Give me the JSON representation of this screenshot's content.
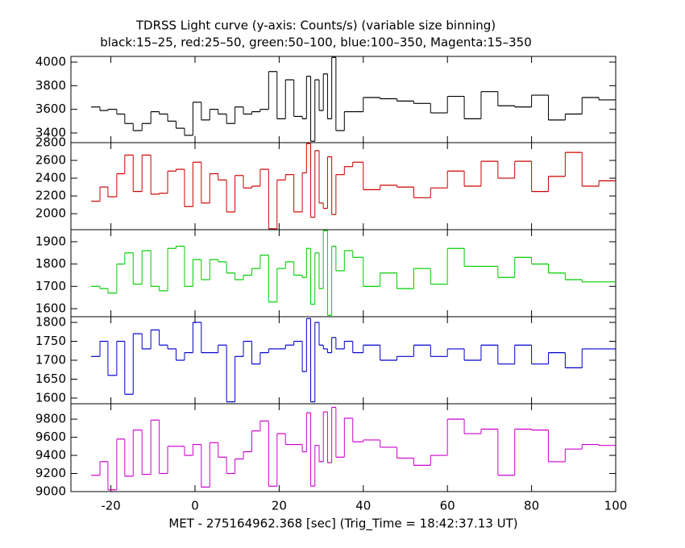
{
  "chart_data": {
    "type": "step",
    "title": "TDRSS Light curve (y-axis: Counts/s) (variable size binning)",
    "subtitle": "black:15–25, red:25–50, green:50–100, blue:100–350, Magenta:15–350",
    "x_label": "MET - 275164962.368 [sec] (Trig_Time = 18:42:37.13 UT)",
    "xlim": [
      -29.5,
      100
    ],
    "xticks": [
      -20,
      0,
      20,
      40,
      60,
      80,
      100
    ],
    "bins": [
      -24.7,
      -22.6,
      -20.7,
      -18.6,
      -16.7,
      -14.7,
      -12.6,
      -10.5,
      -8.5,
      -6.5,
      -4.5,
      -2.5,
      -0.5,
      1.5,
      3.5,
      5.5,
      7.5,
      9.5,
      11.5,
      13.5,
      15.5,
      17.5,
      19.5,
      21.5,
      23.5,
      25.5,
      26.5,
      27.5,
      28.5,
      29.5,
      30.5,
      31.5,
      32.5,
      33.5,
      35.5,
      37.5,
      40,
      44,
      48,
      52,
      56,
      60,
      64,
      68,
      72,
      76,
      80,
      84,
      88,
      92,
      96,
      100
    ],
    "panels": [
      {
        "color": "#000000",
        "ylim": [
          3318,
          4048
        ],
        "yticks": [
          3400,
          3600,
          3800,
          4000
        ],
        "values": [
          3620,
          3590,
          3600,
          3560,
          3480,
          3420,
          3480,
          3580,
          3560,
          3500,
          3440,
          3380,
          3660,
          3510,
          3600,
          3560,
          3480,
          3620,
          3560,
          3580,
          3600,
          3920,
          3520,
          3850,
          3540,
          3520,
          3880,
          3330,
          3850,
          3590,
          3900,
          3520,
          4040,
          3420,
          3580,
          3580,
          3700,
          3690,
          3670,
          3650,
          3570,
          3710,
          3520,
          3750,
          3630,
          3620,
          3720,
          3510,
          3560,
          3700,
          3680
        ]
      },
      {
        "color": "#cc0000",
        "ylim": [
          1820,
          2800
        ],
        "yticks": [
          2000,
          2200,
          2400,
          2600,
          2800
        ],
        "values": [
          2140,
          2300,
          2190,
          2450,
          2660,
          2250,
          2660,
          2220,
          2230,
          2480,
          2500,
          2080,
          2580,
          2120,
          2450,
          2380,
          2020,
          2430,
          2290,
          2310,
          2500,
          1830,
          2380,
          2440,
          2020,
          2460,
          2790,
          1960,
          2710,
          2120,
          2060,
          2640,
          1990,
          2440,
          2530,
          2580,
          2270,
          2320,
          2300,
          2180,
          2290,
          2480,
          2310,
          2590,
          2400,
          2590,
          2250,
          2420,
          2690,
          2310,
          2370
        ]
      },
      {
        "color": "#00cc00",
        "ylim": [
          1564,
          1954
        ],
        "yticks": [
          1600,
          1700,
          1800,
          1900
        ],
        "values": [
          1700,
          1690,
          1670,
          1800,
          1850,
          1710,
          1860,
          1700,
          1680,
          1870,
          1880,
          1700,
          1820,
          1730,
          1820,
          1810,
          1760,
          1730,
          1750,
          1780,
          1840,
          1630,
          1780,
          1810,
          1750,
          1740,
          1870,
          1620,
          1850,
          1690,
          1950,
          1570,
          1880,
          1770,
          1860,
          1830,
          1700,
          1760,
          1690,
          1780,
          1710,
          1870,
          1790,
          1790,
          1740,
          1830,
          1800,
          1760,
          1730,
          1720,
          1720
        ]
      },
      {
        "color": "#0000cc",
        "ylim": [
          1585,
          1815
        ],
        "yticks": [
          1600,
          1650,
          1700,
          1750,
          1800
        ],
        "values": [
          1710,
          1750,
          1660,
          1750,
          1610,
          1770,
          1730,
          1780,
          1740,
          1730,
          1700,
          1720,
          1800,
          1720,
          1720,
          1740,
          1590,
          1710,
          1750,
          1690,
          1720,
          1730,
          1730,
          1740,
          1750,
          1670,
          1810,
          1590,
          1800,
          1740,
          1730,
          1720,
          1760,
          1730,
          1750,
          1720,
          1740,
          1700,
          1710,
          1740,
          1710,
          1730,
          1700,
          1740,
          1690,
          1740,
          1690,
          1720,
          1680,
          1730,
          1730
        ]
      },
      {
        "color": "#cc00cc",
        "ylim": [
          9000,
          9970
        ],
        "yticks": [
          9000,
          9200,
          9400,
          9600,
          9800
        ],
        "values": [
          9180,
          9330,
          9020,
          9580,
          9170,
          9680,
          9190,
          9790,
          9200,
          9500,
          9500,
          9400,
          9520,
          9050,
          9540,
          9380,
          9200,
          9360,
          9440,
          9670,
          9780,
          9060,
          9640,
          9520,
          9520,
          9440,
          9870,
          9060,
          9510,
          9330,
          9880,
          9320,
          9930,
          9380,
          9810,
          9550,
          9570,
          9490,
          9370,
          9290,
          9400,
          9800,
          9640,
          9690,
          9180,
          9690,
          9680,
          9330,
          9470,
          9520,
          9510
        ]
      }
    ]
  }
}
